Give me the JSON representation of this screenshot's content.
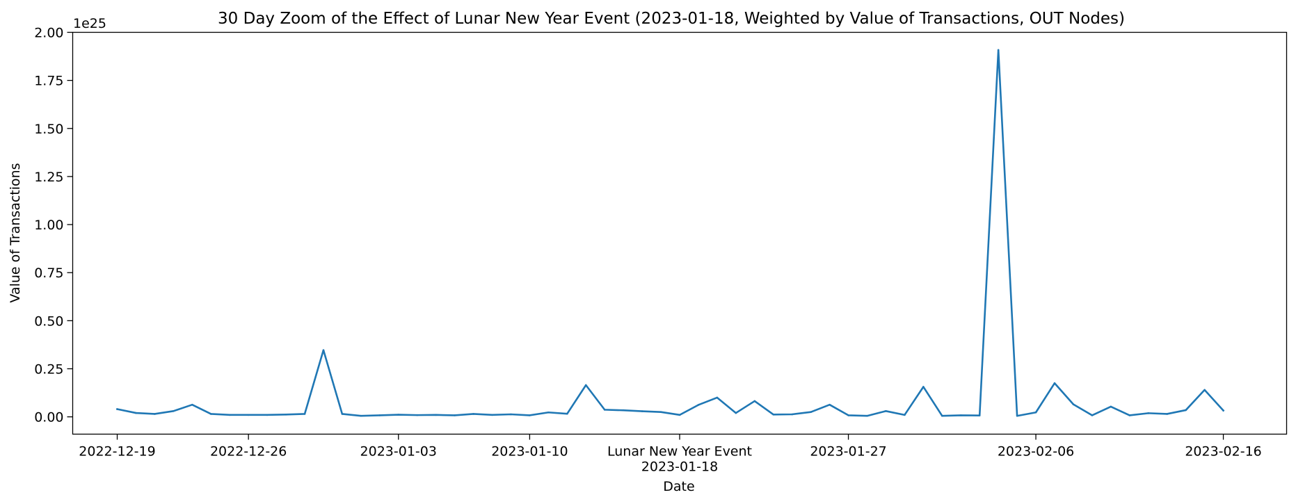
{
  "chart_data": {
    "type": "line",
    "title": "30 Day Zoom of the Effect of Lunar New Year Event (2023-01-18, Weighted by Value of Transactions, OUT Nodes)",
    "xlabel": "Date",
    "ylabel": "Value of Transactions",
    "y_offset_text": "1e25",
    "y_scale": 1e+25,
    "xlim": [
      "2022-12-16T15:00",
      "2023-02-19T09:00"
    ],
    "ylim": [
      -0.09,
      2.0
    ],
    "grid": false,
    "line_color": "#1f77b4",
    "x_ticks": [
      {
        "date": "2022-12-19",
        "label": "2022-12-19"
      },
      {
        "date": "2022-12-26",
        "label": "2022-12-26"
      },
      {
        "date": "2023-01-03",
        "label": "2023-01-03"
      },
      {
        "date": "2023-01-10",
        "label": "2023-01-10"
      },
      {
        "date": "2023-01-18",
        "label": "Lunar New Year Event\n2023-01-18"
      },
      {
        "date": "2023-01-27",
        "label": "2023-01-27"
      },
      {
        "date": "2023-02-06",
        "label": "2023-02-06"
      },
      {
        "date": "2023-02-16",
        "label": "2023-02-16"
      }
    ],
    "y_ticks": [
      "0.00",
      "0.25",
      "0.50",
      "0.75",
      "1.00",
      "1.25",
      "1.50",
      "1.75",
      "2.00"
    ],
    "series": [
      {
        "x": [
          "2022-12-19",
          "2022-12-20",
          "2022-12-21",
          "2022-12-22",
          "2022-12-23",
          "2022-12-24",
          "2022-12-25",
          "2022-12-26",
          "2022-12-27",
          "2022-12-28",
          "2022-12-29",
          "2022-12-30",
          "2022-12-31",
          "2023-01-01",
          "2023-01-02",
          "2023-01-03",
          "2023-01-04",
          "2023-01-05",
          "2023-01-06",
          "2023-01-07",
          "2023-01-08",
          "2023-01-09",
          "2023-01-10",
          "2023-01-11",
          "2023-01-12",
          "2023-01-13",
          "2023-01-14",
          "2023-01-15",
          "2023-01-16",
          "2023-01-17",
          "2023-01-18",
          "2023-01-19",
          "2023-01-20",
          "2023-01-21",
          "2023-01-22",
          "2023-01-23",
          "2023-01-24",
          "2023-01-25",
          "2023-01-26",
          "2023-01-27",
          "2023-01-28",
          "2023-01-29",
          "2023-01-30",
          "2023-01-31",
          "2023-02-01",
          "2023-02-02",
          "2023-02-03",
          "2023-02-04",
          "2023-02-05",
          "2023-02-06",
          "2023-02-07",
          "2023-02-08",
          "2023-02-09",
          "2023-02-10",
          "2023-02-11",
          "2023-02-12",
          "2023-02-13",
          "2023-02-14",
          "2023-02-15",
          "2023-02-16"
        ],
        "values": [
          0.04,
          0.02,
          0.015,
          0.03,
          0.063,
          0.015,
          0.01,
          0.01,
          0.01,
          0.012,
          0.015,
          0.347,
          0.015,
          0.005,
          0.008,
          0.011,
          0.009,
          0.01,
          0.008,
          0.015,
          0.01,
          0.013,
          0.008,
          0.023,
          0.016,
          0.165,
          0.037,
          0.034,
          0.029,
          0.025,
          0.01,
          0.062,
          0.1,
          0.02,
          0.082,
          0.012,
          0.013,
          0.025,
          0.063,
          0.008,
          0.005,
          0.03,
          0.01,
          0.156,
          0.005,
          0.008,
          0.007,
          1.908,
          0.005,
          0.023,
          0.175,
          0.065,
          0.008,
          0.053,
          0.008,
          0.019,
          0.015,
          0.035,
          0.14,
          0.033
        ]
      }
    ]
  }
}
